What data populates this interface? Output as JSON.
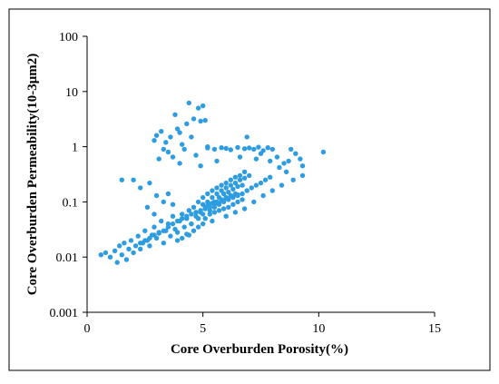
{
  "chart_data": {
    "type": "scatter",
    "title": "",
    "xlabel": "Core Overburden Porosity(%)",
    "ylabel": "Core Overburden Permeability(10-3μm2)",
    "x_scale": "linear",
    "y_scale": "log",
    "xlim": [
      0,
      15
    ],
    "ylim": [
      0.001,
      100
    ],
    "x_ticks": [
      "0",
      "5",
      "10",
      "15"
    ],
    "y_ticks": [
      "0.001",
      "0.01",
      "0.1",
      "1",
      "10",
      "100"
    ],
    "grid": false,
    "legend": "none",
    "marker_color": "#2e9ce0",
    "series": [
      {
        "points": [
          [
            0.6,
            0.011
          ],
          [
            0.8,
            0.012
          ],
          [
            1.0,
            0.01
          ],
          [
            1.2,
            0.013
          ],
          [
            1.3,
            0.008
          ],
          [
            1.4,
            0.016
          ],
          [
            1.5,
            0.011
          ],
          [
            1.6,
            0.018
          ],
          [
            1.7,
            0.009
          ],
          [
            1.8,
            0.014
          ],
          [
            1.9,
            0.02
          ],
          [
            2.0,
            0.012
          ],
          [
            2.1,
            0.016
          ],
          [
            2.2,
            0.024
          ],
          [
            2.3,
            0.014
          ],
          [
            2.4,
            0.018
          ],
          [
            2.5,
            0.03
          ],
          [
            2.6,
            0.02
          ],
          [
            2.7,
            0.016
          ],
          [
            2.8,
            0.025
          ],
          [
            2.9,
            0.035
          ],
          [
            3.0,
            0.022
          ],
          [
            3.1,
            0.028
          ],
          [
            3.2,
            0.045
          ],
          [
            3.3,
            0.018
          ],
          [
            3.4,
            0.03
          ],
          [
            3.5,
            0.04
          ],
          [
            3.6,
            0.024
          ],
          [
            3.7,
            0.055
          ],
          [
            3.8,
            0.032
          ],
          [
            3.9,
            0.028
          ],
          [
            4.0,
            0.045
          ],
          [
            4.1,
            0.06
          ],
          [
            4.2,
            0.035
          ],
          [
            4.3,
            0.05
          ],
          [
            4.4,
            0.07
          ],
          [
            4.5,
            0.04
          ],
          [
            4.6,
            0.08
          ],
          [
            4.7,
            0.055
          ],
          [
            4.8,
            0.1
          ],
          [
            4.9,
            0.065
          ],
          [
            5.0,
            0.12
          ],
          [
            5.1,
            0.08
          ],
          [
            5.2,
            0.14
          ],
          [
            5.3,
            0.09
          ],
          [
            5.4,
            0.16
          ],
          [
            5.5,
            0.1
          ],
          [
            5.6,
            0.18
          ],
          [
            5.7,
            0.12
          ],
          [
            5.8,
            0.2
          ],
          [
            5.9,
            0.14
          ],
          [
            6.0,
            0.22
          ],
          [
            6.1,
            0.15
          ],
          [
            6.2,
            0.25
          ],
          [
            6.3,
            0.17
          ],
          [
            6.4,
            0.28
          ],
          [
            6.5,
            0.19
          ],
          [
            6.6,
            0.3
          ],
          [
            6.7,
            0.2
          ],
          [
            6.8,
            0.35
          ],
          [
            2.0,
            0.25
          ],
          [
            2.3,
            0.18
          ],
          [
            1.5,
            0.25
          ],
          [
            2.7,
            0.22
          ],
          [
            3.0,
            0.13
          ],
          [
            3.3,
            0.1
          ],
          [
            3.5,
            0.14
          ],
          [
            2.6,
            0.08
          ],
          [
            2.9,
            0.06
          ],
          [
            3.7,
            0.09
          ],
          [
            3.0,
            1.6
          ],
          [
            3.2,
            1.9
          ],
          [
            3.4,
            1.2
          ],
          [
            3.5,
            0.8
          ],
          [
            3.6,
            1.5
          ],
          [
            3.8,
            3.8
          ],
          [
            3.9,
            2.1
          ],
          [
            4.0,
            1.8
          ],
          [
            4.1,
            1.1
          ],
          [
            4.2,
            0.9
          ],
          [
            4.3,
            2.6
          ],
          [
            4.4,
            6.2
          ],
          [
            4.5,
            1.5
          ],
          [
            4.6,
            3.2
          ],
          [
            4.7,
            0.7
          ],
          [
            4.8,
            5.0
          ],
          [
            4.9,
            2.9
          ],
          [
            5.0,
            5.5
          ],
          [
            5.1,
            3.0
          ],
          [
            5.2,
            1.0
          ],
          [
            3.1,
            0.6
          ],
          [
            3.3,
            0.9
          ],
          [
            2.9,
            1.3
          ],
          [
            4.0,
            0.5
          ],
          [
            3.7,
            0.65
          ],
          [
            5.2,
            0.95
          ],
          [
            5.5,
            0.9
          ],
          [
            5.8,
            0.96
          ],
          [
            6.0,
            0.93
          ],
          [
            6.2,
            0.88
          ],
          [
            6.5,
            0.97
          ],
          [
            6.8,
            0.92
          ],
          [
            7.0,
            0.95
          ],
          [
            7.2,
            0.9
          ],
          [
            7.4,
            0.98
          ],
          [
            7.6,
            0.85
          ],
          [
            7.8,
            0.96
          ],
          [
            8.0,
            0.9
          ],
          [
            6.9,
            1.5
          ],
          [
            7.5,
            0.75
          ],
          [
            8.2,
            0.65
          ],
          [
            8.5,
            0.5
          ],
          [
            8.7,
            0.55
          ],
          [
            8.8,
            0.9
          ],
          [
            9.0,
            0.75
          ],
          [
            9.2,
            0.6
          ],
          [
            9.3,
            0.45
          ],
          [
            8.6,
            0.35
          ],
          [
            10.2,
            0.8
          ],
          [
            8.3,
            0.42
          ],
          [
            7.9,
            0.55
          ],
          [
            7.3,
            0.6
          ],
          [
            6.6,
            0.65
          ],
          [
            5.6,
            0.55
          ],
          [
            4.9,
            0.45
          ],
          [
            4.5,
            0.04
          ],
          [
            4.8,
            0.05
          ],
          [
            5.0,
            0.06
          ],
          [
            5.3,
            0.07
          ],
          [
            5.5,
            0.08
          ],
          [
            5.7,
            0.09
          ],
          [
            5.9,
            0.1
          ],
          [
            6.1,
            0.11
          ],
          [
            6.3,
            0.12
          ],
          [
            6.5,
            0.13
          ],
          [
            6.7,
            0.14
          ],
          [
            6.9,
            0.16
          ],
          [
            7.1,
            0.18
          ],
          [
            7.3,
            0.2
          ],
          [
            7.5,
            0.22
          ],
          [
            7.7,
            0.25
          ],
          [
            7.9,
            0.28
          ],
          [
            5.2,
            0.1
          ],
          [
            5.4,
            0.12
          ],
          [
            5.6,
            0.14
          ],
          [
            5.8,
            0.16
          ],
          [
            6.0,
            0.18
          ],
          [
            6.2,
            0.2
          ],
          [
            6.4,
            0.22
          ],
          [
            6.6,
            0.25
          ],
          [
            6.8,
            0.27
          ],
          [
            7.0,
            0.3
          ],
          [
            5.1,
            0.05
          ],
          [
            5.3,
            0.06
          ],
          [
            5.5,
            0.065
          ],
          [
            5.7,
            0.07
          ],
          [
            5.9,
            0.075
          ],
          [
            6.1,
            0.08
          ],
          [
            6.3,
            0.09
          ],
          [
            6.5,
            0.1
          ],
          [
            6.7,
            0.11
          ],
          [
            4.4,
            0.025
          ],
          [
            4.6,
            0.03
          ],
          [
            4.8,
            0.035
          ],
          [
            5.0,
            0.04
          ],
          [
            3.9,
            0.02
          ],
          [
            4.1,
            0.022
          ],
          [
            4.3,
            0.026
          ],
          [
            5.4,
            0.045
          ],
          [
            6.0,
            0.055
          ],
          [
            6.4,
            0.065
          ],
          [
            6.8,
            0.075
          ],
          [
            7.2,
            0.1
          ],
          [
            7.6,
            0.13
          ],
          [
            8.0,
            0.16
          ],
          [
            8.4,
            0.2
          ],
          [
            8.9,
            0.25
          ],
          [
            9.3,
            0.3
          ],
          [
            5.0,
            0.09
          ],
          [
            5.2,
            0.085
          ],
          [
            5.4,
            0.095
          ],
          [
            5.6,
            0.1
          ],
          [
            5.8,
            0.11
          ],
          [
            6.0,
            0.12
          ],
          [
            6.2,
            0.13
          ],
          [
            6.4,
            0.14
          ],
          [
            5.1,
            0.075
          ],
          [
            5.3,
            0.08
          ],
          [
            5.5,
            0.09
          ],
          [
            5.7,
            0.095
          ],
          [
            5.9,
            0.105
          ],
          [
            6.1,
            0.115
          ],
          [
            6.3,
            0.125
          ],
          [
            6.5,
            0.135
          ],
          [
            4.9,
            0.07
          ],
          [
            4.7,
            0.065
          ],
          [
            4.5,
            0.06
          ],
          [
            4.3,
            0.055
          ],
          [
            4.1,
            0.05
          ],
          [
            3.9,
            0.045
          ],
          [
            3.7,
            0.04
          ],
          [
            3.5,
            0.035
          ],
          [
            3.3,
            0.03
          ],
          [
            3.1,
            0.027
          ],
          [
            2.9,
            0.025
          ],
          [
            2.7,
            0.022
          ],
          [
            2.5,
            0.02
          ],
          [
            2.3,
            0.018
          ]
        ]
      }
    ]
  }
}
